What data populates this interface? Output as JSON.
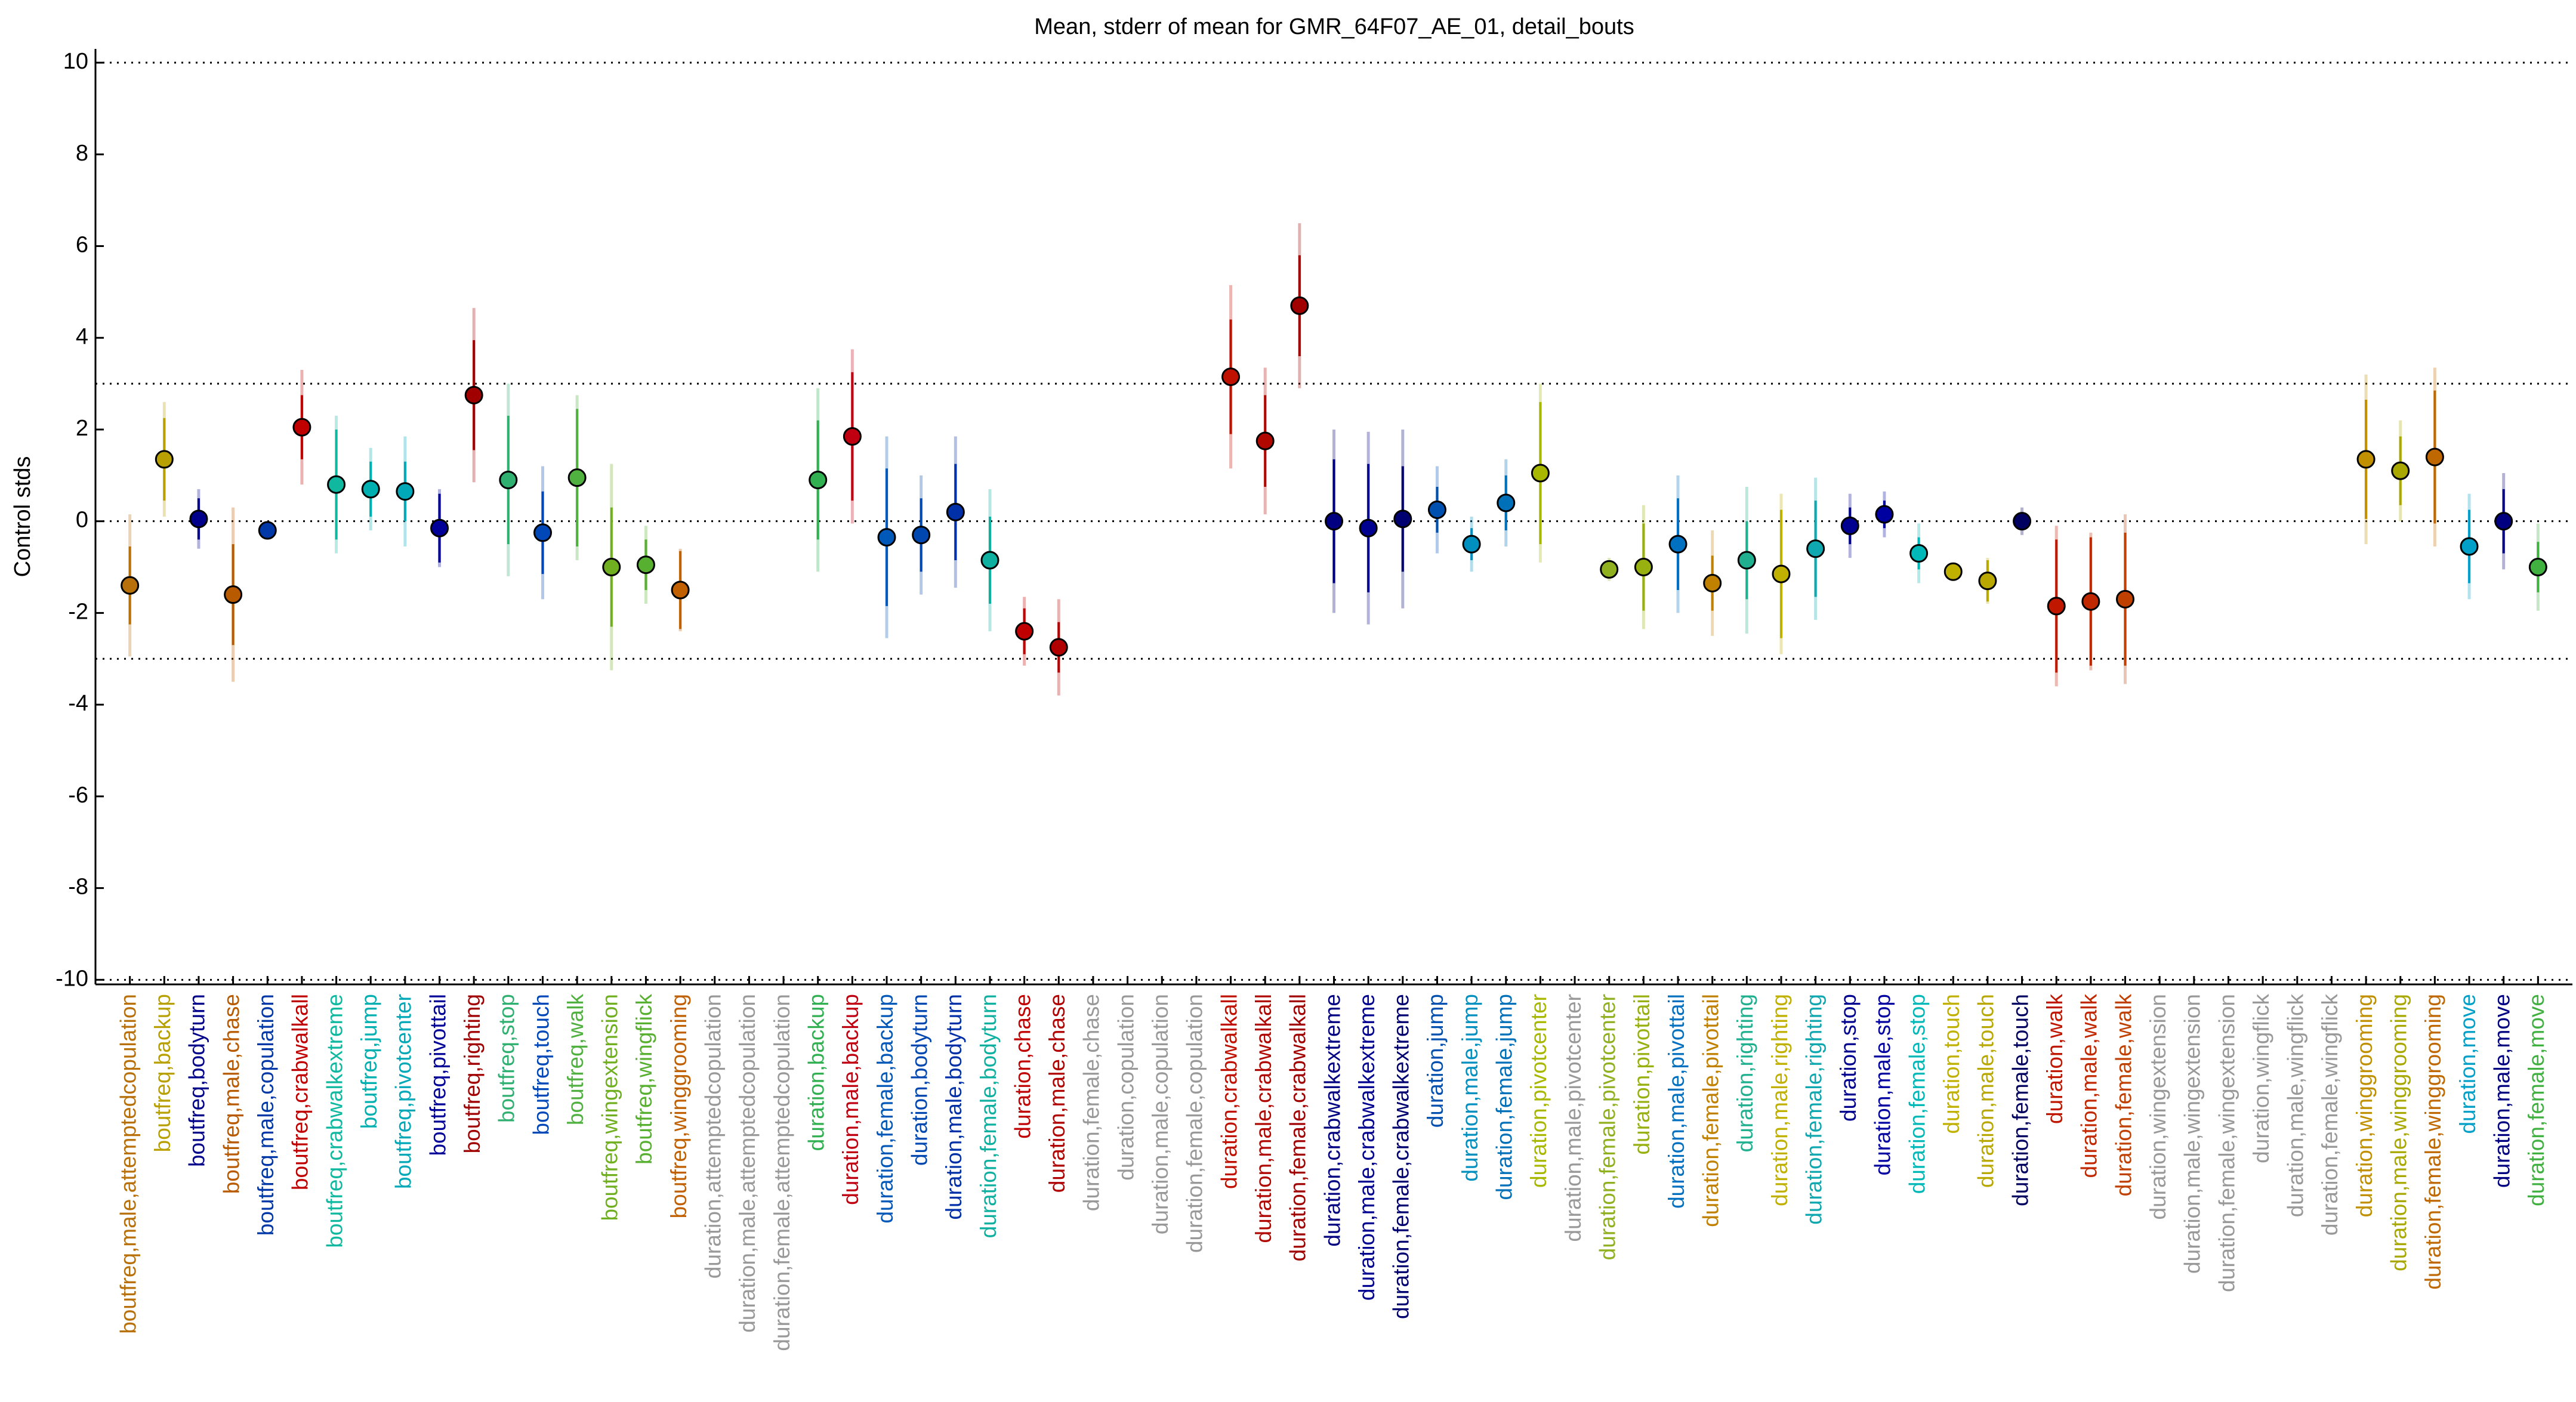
{
  "chart_data": {
    "type": "errorbar",
    "title": "Mean, stderr of mean for GMR_64F07_AE_01, detail_bouts",
    "y_label": "Control stds",
    "ylim": [
      -10.1,
      10.3
    ],
    "yticks": [
      -10,
      -8,
      -6,
      -4,
      -2,
      0,
      2,
      4,
      6,
      8,
      10
    ],
    "grid_lines": [
      10,
      3,
      0,
      -3,
      -10
    ],
    "categories": [
      "boutfreq,male,attemptedcopulation",
      "boutfreq,backup",
      "boutfreq,bodyturn",
      "boutfreq,male,chase",
      "boutfreq,male,copulation",
      "boutfreq,crabwalkall",
      "boutfreq,crabwalkextreme",
      "boutfreq,jump",
      "boutfreq,pivotcenter",
      "boutfreq,pivottail",
      "boutfreq,righting",
      "boutfreq,stop",
      "boutfreq,touch",
      "boutfreq,walk",
      "boutfreq,wingextension",
      "boutfreq,wingflick",
      "boutfreq,winggrooming",
      "duration,attemptedcopulation",
      "duration,male,attemptedcopulation",
      "duration,female,attemptedcopulation",
      "duration,backup",
      "duration,male,backup",
      "duration,female,backup",
      "duration,bodyturn",
      "duration,male,bodyturn",
      "duration,female,bodyturn",
      "duration,chase",
      "duration,male,chase",
      "duration,female,chase",
      "duration,copulation",
      "duration,male,copulation",
      "duration,female,copulation",
      "duration,crabwalkall",
      "duration,male,crabwalkall",
      "duration,female,crabwalkall",
      "duration,crabwalkextreme",
      "duration,male,crabwalkextreme",
      "duration,female,crabwalkextreme",
      "duration,jump",
      "duration,male,jump",
      "duration,female,jump",
      "duration,pivotcenter",
      "duration,male,pivotcenter",
      "duration,female,pivotcenter",
      "duration,pivottail",
      "duration,male,pivottail",
      "duration,female,pivottail",
      "duration,righting",
      "duration,male,righting",
      "duration,female,righting",
      "duration,stop",
      "duration,male,stop",
      "duration,female,stop",
      "duration,touch",
      "duration,male,touch",
      "duration,female,touch",
      "duration,walk",
      "duration,male,walk",
      "duration,female,walk",
      "duration,wingextension",
      "duration,male,wingextension",
      "duration,female,wingextension",
      "duration,wingflick",
      "duration,male,wingflick",
      "duration,female,wingflick",
      "duration,winggrooming",
      "duration,male,winggrooming",
      "duration,female,winggrooming",
      "duration,move",
      "duration,male,move",
      "duration,female,move"
    ],
    "values": [
      -1.4,
      1.35,
      0.05,
      -1.6,
      -0.2,
      2.05,
      0.8,
      0.7,
      0.65,
      -0.15,
      2.75,
      0.9,
      -0.25,
      0.95,
      -1.0,
      -0.95,
      -1.5,
      null,
      null,
      null,
      0.9,
      1.85,
      -0.35,
      -0.3,
      0.2,
      -0.85,
      -2.4,
      -2.75,
      null,
      null,
      null,
      null,
      3.15,
      1.75,
      4.7,
      0.0,
      -0.15,
      0.05,
      0.25,
      -0.5,
      0.4,
      1.05,
      null,
      -1.05,
      -1.0,
      -0.5,
      -1.35,
      -0.85,
      -1.15,
      -0.6,
      -0.1,
      0.15,
      -0.7,
      -1.1,
      -1.3,
      0.0,
      -1.85,
      -1.75,
      -1.7,
      null,
      null,
      null,
      null,
      null,
      null,
      1.35,
      1.1,
      1.4,
      -0.55,
      0.0,
      -1.0
    ],
    "errors": [
      0.85,
      0.9,
      0.45,
      1.1,
      0.1,
      0.7,
      1.2,
      0.6,
      0.65,
      0.75,
      1.2,
      1.4,
      0.9,
      1.5,
      1.3,
      0.55,
      0.85,
      null,
      null,
      null,
      1.3,
      1.4,
      1.5,
      0.8,
      1.05,
      0.95,
      0.5,
      0.55,
      null,
      null,
      null,
      null,
      1.25,
      1.0,
      1.1,
      1.35,
      1.4,
      1.15,
      0.5,
      0.35,
      0.6,
      1.55,
      null,
      0.15,
      0.95,
      1.0,
      0.6,
      0.85,
      1.4,
      1.05,
      0.4,
      0.3,
      0.35,
      0.1,
      0.45,
      0.15,
      1.45,
      1.4,
      1.45,
      null,
      null,
      null,
      null,
      null,
      null,
      1.3,
      0.75,
      1.45,
      0.8,
      0.7,
      0.55
    ],
    "spread": [
      1.55,
      1.25,
      0.65,
      1.9,
      0.1,
      1.25,
      1.5,
      0.9,
      1.2,
      0.85,
      1.9,
      2.1,
      1.45,
      1.8,
      2.25,
      0.85,
      0.9,
      null,
      null,
      null,
      2.0,
      1.9,
      2.2,
      1.3,
      1.65,
      1.55,
      0.75,
      1.05,
      null,
      null,
      null,
      null,
      2.0,
      1.6,
      1.8,
      2.0,
      2.1,
      1.95,
      0.95,
      0.6,
      0.95,
      1.95,
      null,
      0.25,
      1.35,
      1.5,
      1.15,
      1.6,
      1.75,
      1.55,
      0.7,
      0.5,
      0.65,
      0.15,
      0.5,
      0.3,
      1.75,
      1.5,
      1.85,
      null,
      null,
      null,
      null,
      null,
      null,
      1.85,
      1.1,
      1.95,
      1.15,
      1.05,
      0.95
    ],
    "colors": [
      "#b8700a",
      "#b8a000",
      "#00008b",
      "#b85a00",
      "#0038a8",
      "#c00000",
      "#10b8a0",
      "#00b0b0",
      "#00a8b8",
      "#000099",
      "#a00000",
      "#30b070",
      "#0048b8",
      "#50b040",
      "#70b020",
      "#58b030",
      "#c06000",
      "#999999",
      "#999999",
      "#999999",
      "#30b050",
      "#c00010",
      "#0058b8",
      "#0048b0",
      "#0030a8",
      "#10b0a0",
      "#c00000",
      "#b00000",
      "#999999",
      "#999999",
      "#999999",
      "#999999",
      "#c01000",
      "#b00800",
      "#a00000",
      "#000080",
      "#000090",
      "#000070",
      "#0050b0",
      "#0090c0",
      "#0070b8",
      "#a8b800",
      "#999999",
      "#90b020",
      "#98b010",
      "#0070c0",
      "#c08000",
      "#20b090",
      "#c0b000",
      "#10a8b0",
      "#000090",
      "#0000a0",
      "#00b8b8",
      "#c0b000",
      "#b8a800",
      "#000060",
      "#c01800",
      "#c02800",
      "#c04000",
      "#999999",
      "#999999",
      "#999999",
      "#999999",
      "#999999",
      "#999999",
      "#c09000",
      "#a8a800",
      "#c06800",
      "#00a0c8",
      "#000080",
      "#40b040"
    ]
  }
}
